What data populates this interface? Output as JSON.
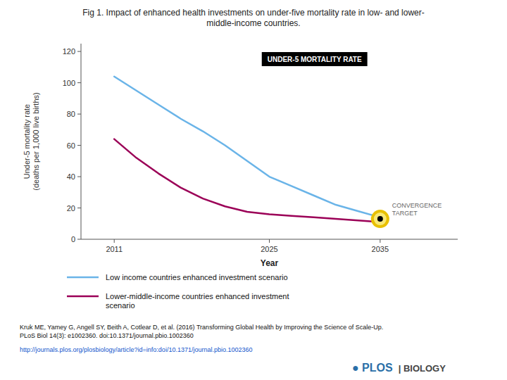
{
  "chart_data": {
    "type": "line",
    "title": "Fig 1. Impact of enhanced health investments on under-five mortality rate in low- and lower-\nmiddle-income countries.",
    "x_label": "Year",
    "y_label": "Under-5 mortality rate\n(deaths per 1,000 live births)",
    "x": [
      2011,
      2013,
      2015,
      2017,
      2019,
      2021,
      2023,
      2025,
      2027,
      2029,
      2031,
      2033,
      2035
    ],
    "series": [
      {
        "name": "Low income countries enhanced investment scenario",
        "color": "#6ab4e8",
        "values": [
          104,
          95,
          86,
          77,
          69,
          60,
          50,
          40,
          34,
          28,
          22,
          18,
          14
        ]
      },
      {
        "name": "Lower-middle-income countries enhanced investment\nscenario",
        "color": "#9b0057",
        "values": [
          64,
          52,
          42,
          33,
          26,
          21,
          17.5,
          16,
          15,
          14,
          13,
          12,
          11
        ]
      }
    ],
    "xlim": [
      2008,
      2042
    ],
    "xticks": [
      2011,
      2025,
      2035
    ],
    "ylim": [
      0,
      125
    ],
    "yticks": [
      0,
      20,
      40,
      60,
      80,
      100,
      120
    ],
    "grid": false,
    "legend": "bottom",
    "annotations": [
      {
        "text": "CONVERGENCE\nTARGET",
        "x": 2035,
        "y": 13
      },
      {
        "text": "UNDER-5 MORTALITY RATE"
      },
      {
        "text": "Kruk ME, Yamey G, Angell SY, Beith A, Cotlear D, et al. (2016) Transforming Global Health by Improving the Science of Scale-Up.\nPLoS Biol 14(3): e1002360. doi:10.1371/journal.pbio.1002360"
      },
      {
        "text": "http://journals.plos.org/plosbiology/article?id=info:doi/10.1371/journal.pbio.1002360",
        "color": "#1155cc"
      },
      {
        "text": "● PLOS",
        "color": "#2a6fa8"
      },
      {
        "text": "| BIOLOGY",
        "color": "#444444"
      }
    ]
  }
}
